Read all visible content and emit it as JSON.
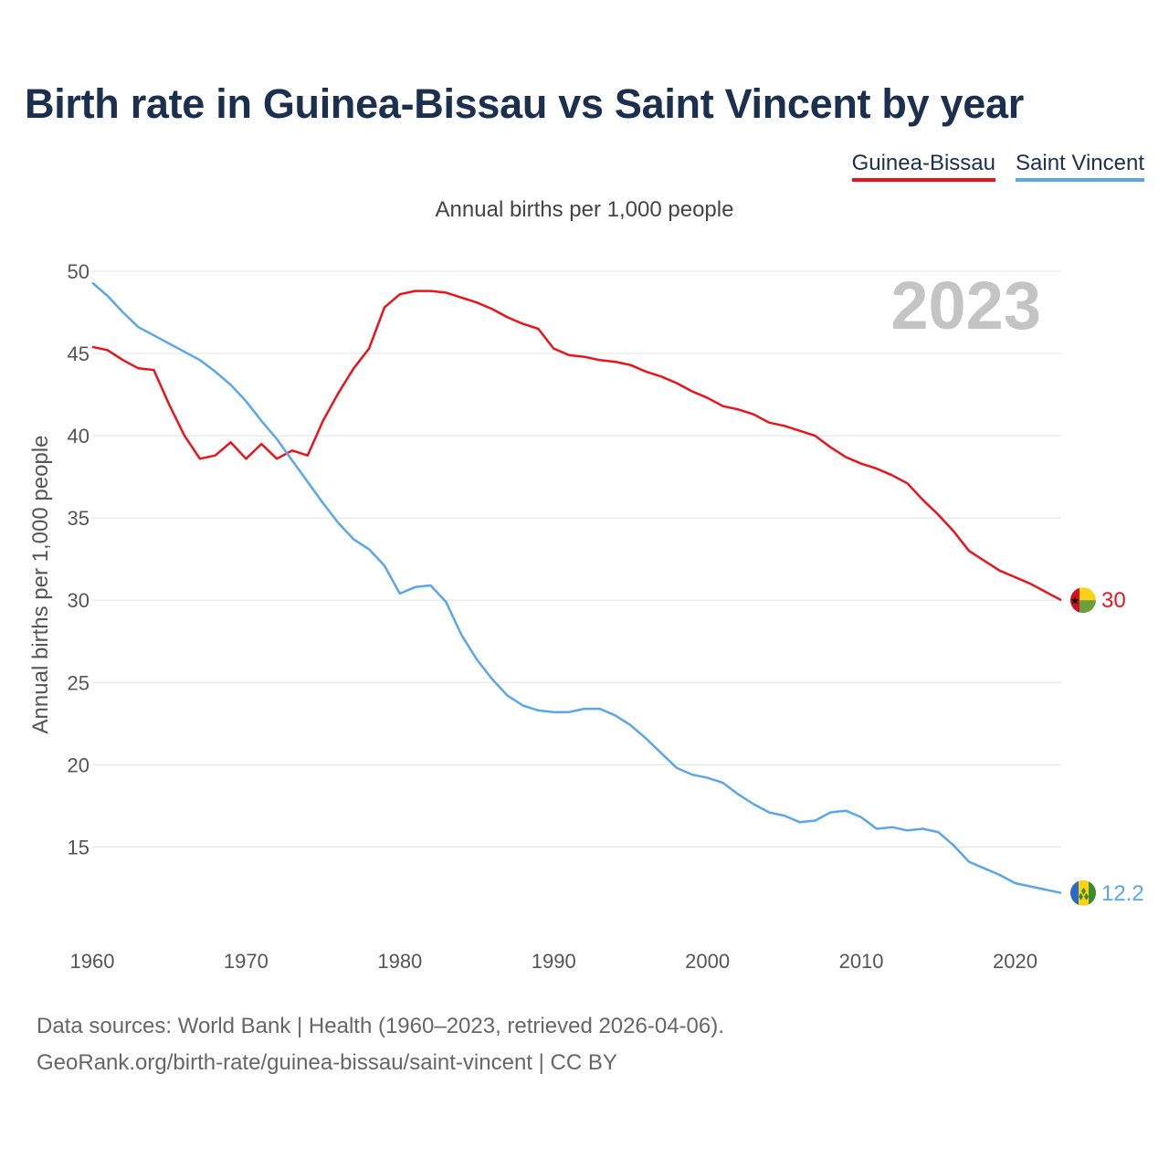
{
  "title": "Birth rate in Guinea-Bissau vs Saint Vincent by year",
  "legend": [
    {
      "name": "Guinea-Bissau",
      "color": "#e8141b"
    },
    {
      "name": "Saint Vincent",
      "color": "#5ba6e8"
    }
  ],
  "subtitle": "Annual births per 1,000 people",
  "footer": {
    "line1": "Data sources: World Bank | Health (1960–2023, retrieved 2026-04-06).",
    "line2": "GeoRank.org/birth-rate/guinea-bissau/saint-vincent | CC BY"
  },
  "chart_data": {
    "type": "line",
    "ylabel": "Annual births per 1,000 people",
    "xlabel": "",
    "year_watermark": "2023",
    "xlim": [
      1960,
      2023
    ],
    "ylim": [
      10.3,
      50
    ],
    "xticks": [
      "1960",
      "1970",
      "1980",
      "1990",
      "2000",
      "2010",
      "2020"
    ],
    "yticks": [
      "15",
      "20",
      "25",
      "30",
      "35",
      "40",
      "45",
      "50"
    ],
    "x": [
      1960,
      1961,
      1962,
      1963,
      1964,
      1965,
      1966,
      1967,
      1968,
      1969,
      1970,
      1971,
      1972,
      1973,
      1974,
      1975,
      1976,
      1977,
      1978,
      1979,
      1980,
      1981,
      1982,
      1983,
      1984,
      1985,
      1986,
      1987,
      1988,
      1989,
      1990,
      1991,
      1992,
      1993,
      1994,
      1995,
      1996,
      1997,
      1998,
      1999,
      2000,
      2001,
      2002,
      2003,
      2004,
      2005,
      2006,
      2007,
      2008,
      2009,
      2010,
      2011,
      2012,
      2013,
      2014,
      2015,
      2016,
      2017,
      2018,
      2019,
      2020,
      2021,
      2022,
      2023
    ],
    "series": [
      {
        "name": "Guinea-Bissau",
        "color": "#e8141b",
        "end_label": "30",
        "values": [
          45.4,
          45.2,
          44.6,
          44.1,
          44.0,
          41.9,
          40.0,
          38.6,
          38.8,
          39.6,
          38.6,
          39.5,
          38.6,
          39.1,
          38.8,
          40.9,
          42.6,
          44.1,
          45.3,
          47.8,
          48.6,
          48.8,
          48.8,
          48.7,
          48.4,
          48.1,
          47.7,
          47.2,
          46.8,
          46.5,
          45.3,
          44.9,
          44.8,
          44.6,
          44.5,
          44.3,
          43.9,
          43.6,
          43.2,
          42.7,
          42.3,
          41.8,
          41.6,
          41.3,
          40.8,
          40.6,
          40.3,
          40.0,
          39.3,
          38.7,
          38.3,
          38.0,
          37.6,
          37.1,
          36.1,
          35.2,
          34.2,
          33.0,
          32.4,
          31.8,
          31.4,
          31.0,
          30.5,
          30.0
        ]
      },
      {
        "name": "Saint Vincent",
        "color": "#5ba6e8",
        "end_label": "12.2",
        "values": [
          49.3,
          48.5,
          47.5,
          46.6,
          46.1,
          45.6,
          45.1,
          44.6,
          43.9,
          43.1,
          42.1,
          40.9,
          39.8,
          38.5,
          37.2,
          35.9,
          34.7,
          33.7,
          33.1,
          32.1,
          30.4,
          30.8,
          30.9,
          29.9,
          27.9,
          26.4,
          25.2,
          24.2,
          23.6,
          23.3,
          23.2,
          23.2,
          23.4,
          23.4,
          23.0,
          22.4,
          21.6,
          20.7,
          19.8,
          19.4,
          19.2,
          18.9,
          18.2,
          17.6,
          17.1,
          16.9,
          16.5,
          16.6,
          17.1,
          17.2,
          16.8,
          16.1,
          16.2,
          16.0,
          16.1,
          15.9,
          15.1,
          14.1,
          13.7,
          13.3,
          12.8,
          12.6,
          12.4,
          12.2
        ]
      }
    ]
  }
}
